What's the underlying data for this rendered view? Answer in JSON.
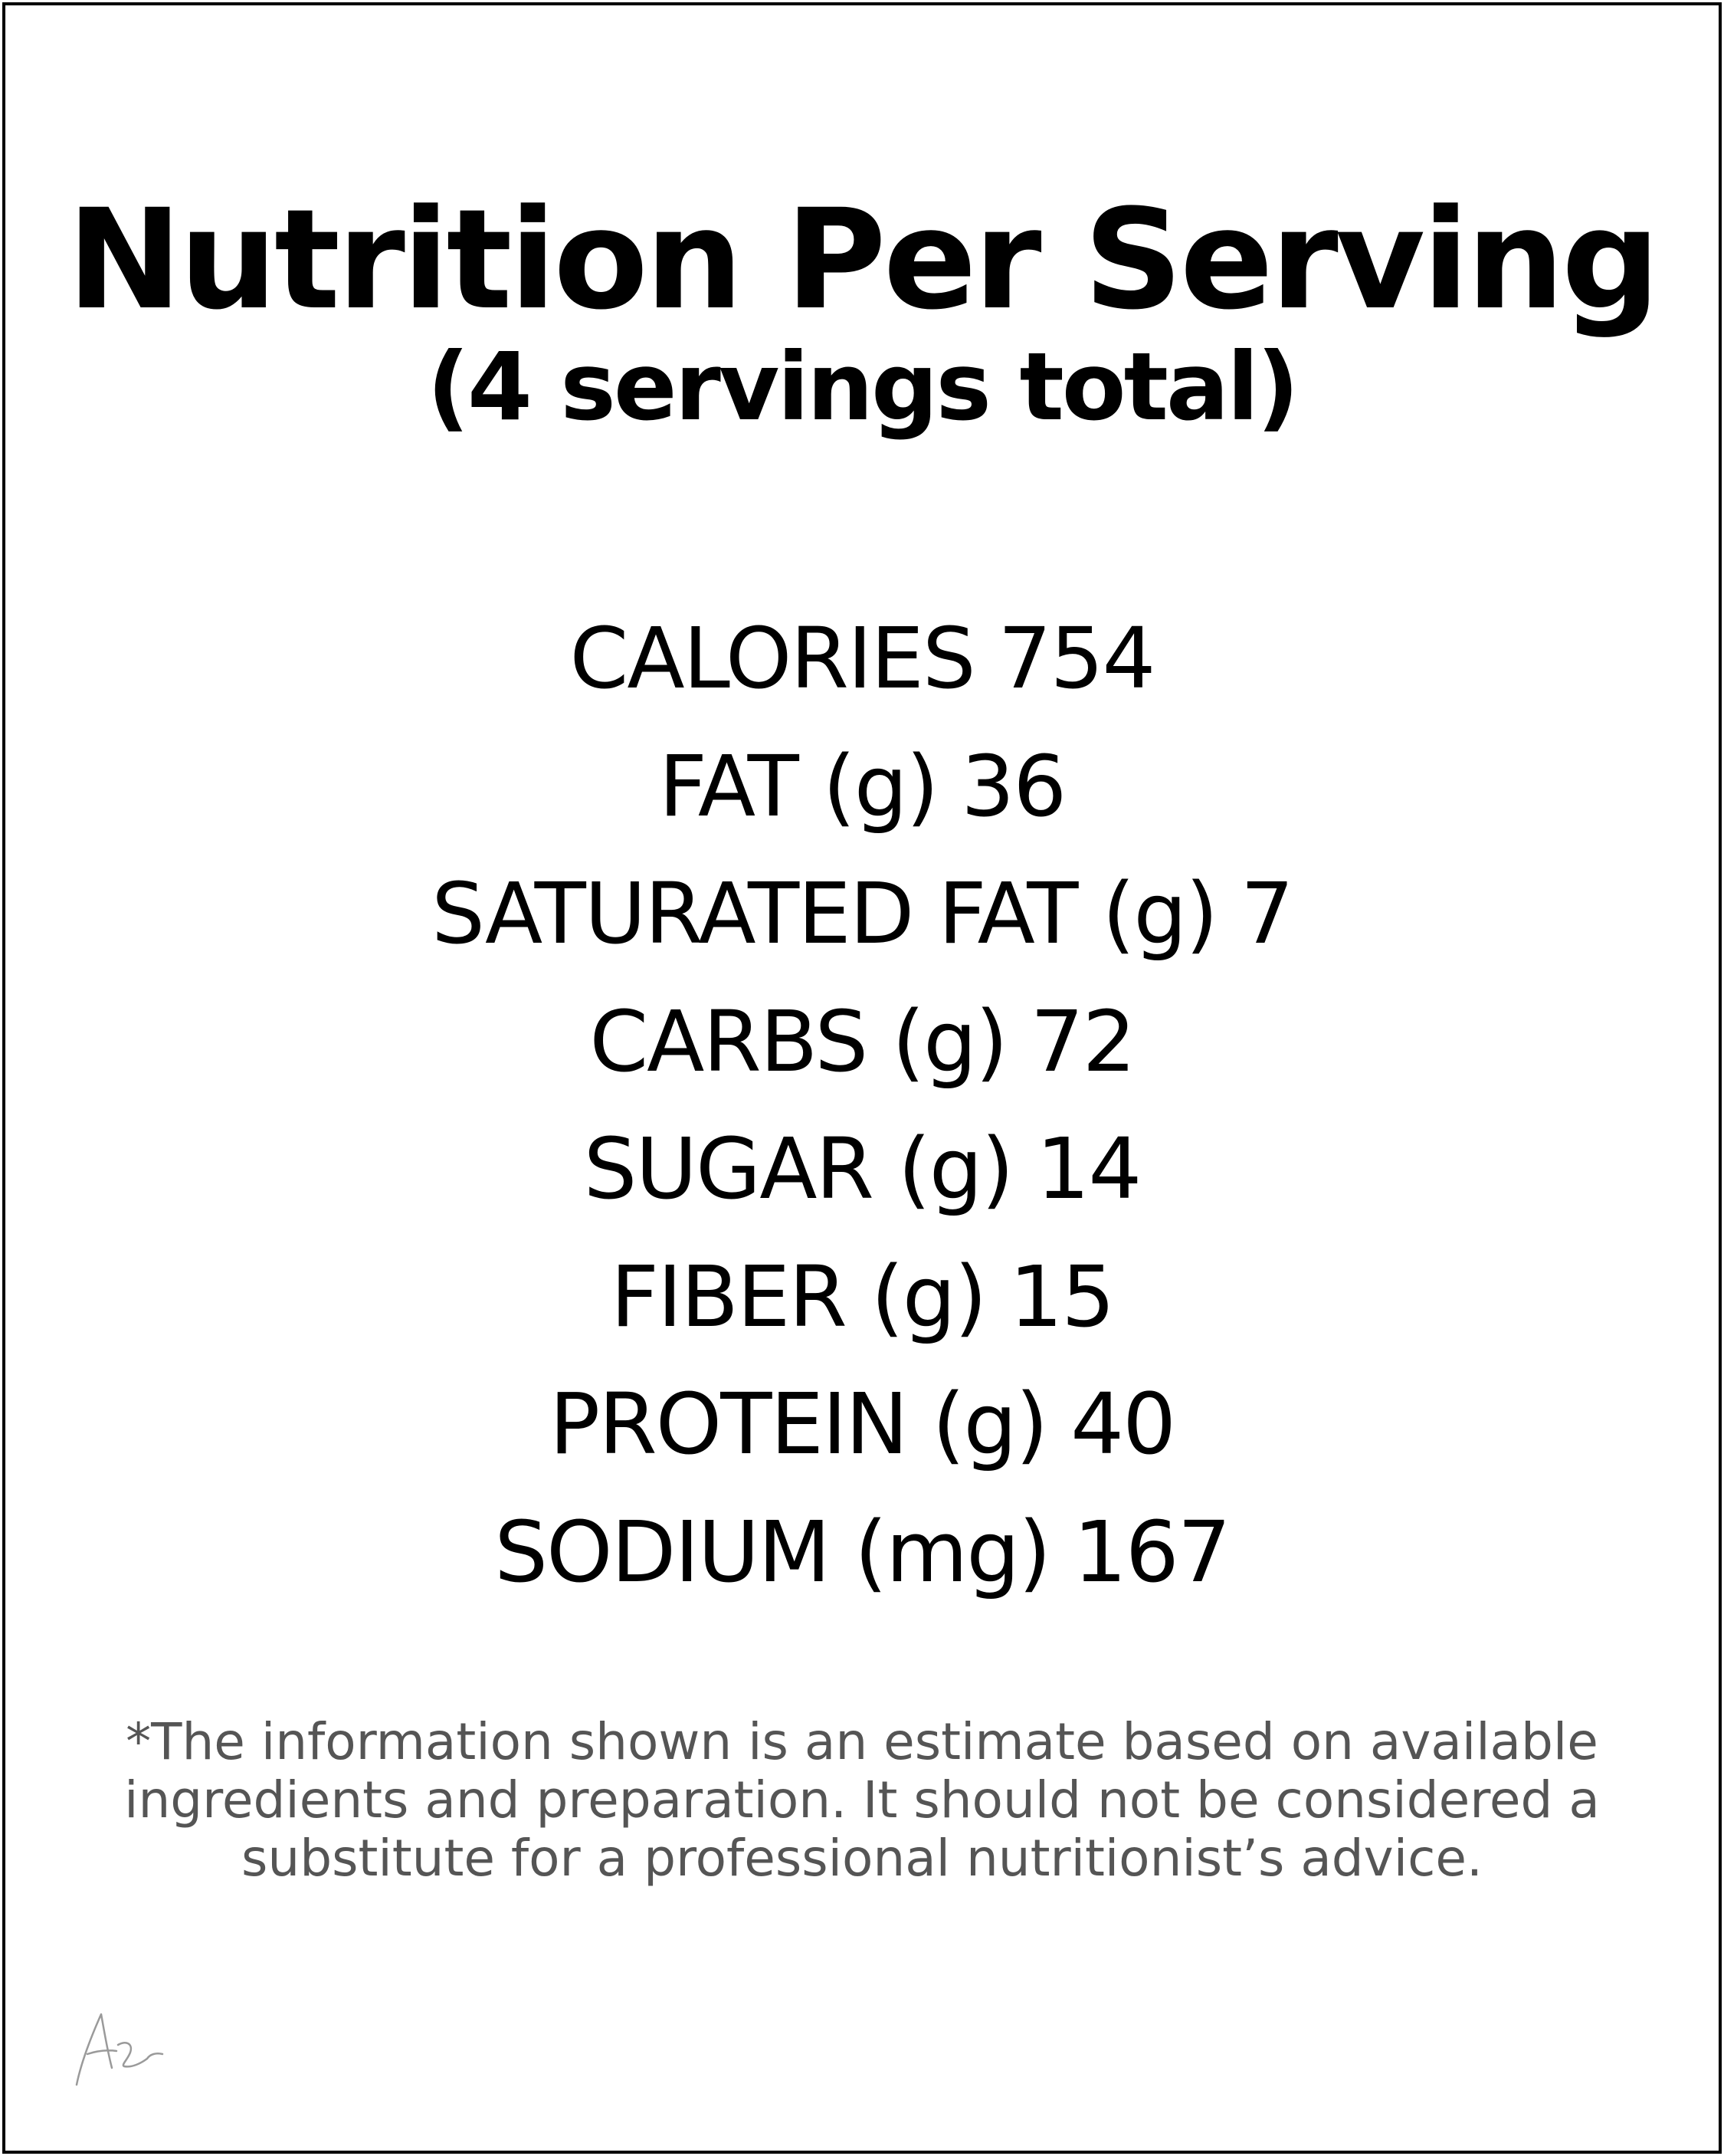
{
  "title": "Nutrition Per Serving",
  "subtitle": "(4 servings total)",
  "facts": [
    {
      "label": "CALORIES",
      "value": "754"
    },
    {
      "label": "FAT (g)",
      "value": "36"
    },
    {
      "label": "SATURATED FAT (g)",
      "value": "7"
    },
    {
      "label": "CARBS (g)",
      "value": "72"
    },
    {
      "label": "SUGAR (g)",
      "value": "14"
    },
    {
      "label": "FIBER (g)",
      "value": "15"
    },
    {
      "label": "PROTEIN (g)",
      "value": "40"
    },
    {
      "label": "SODIUM (mg)",
      "value": "167"
    }
  ],
  "disclaimer": "*The information shown is an estimate based on available ingredients and preparation. It should not be considered a substitute for a professional nutritionist’s advice.",
  "signature_icon": "handwritten-signature",
  "colors": {
    "text": "#000000",
    "disclaimer_text": "#555555",
    "border": "#000000",
    "background": "#ffffff"
  }
}
